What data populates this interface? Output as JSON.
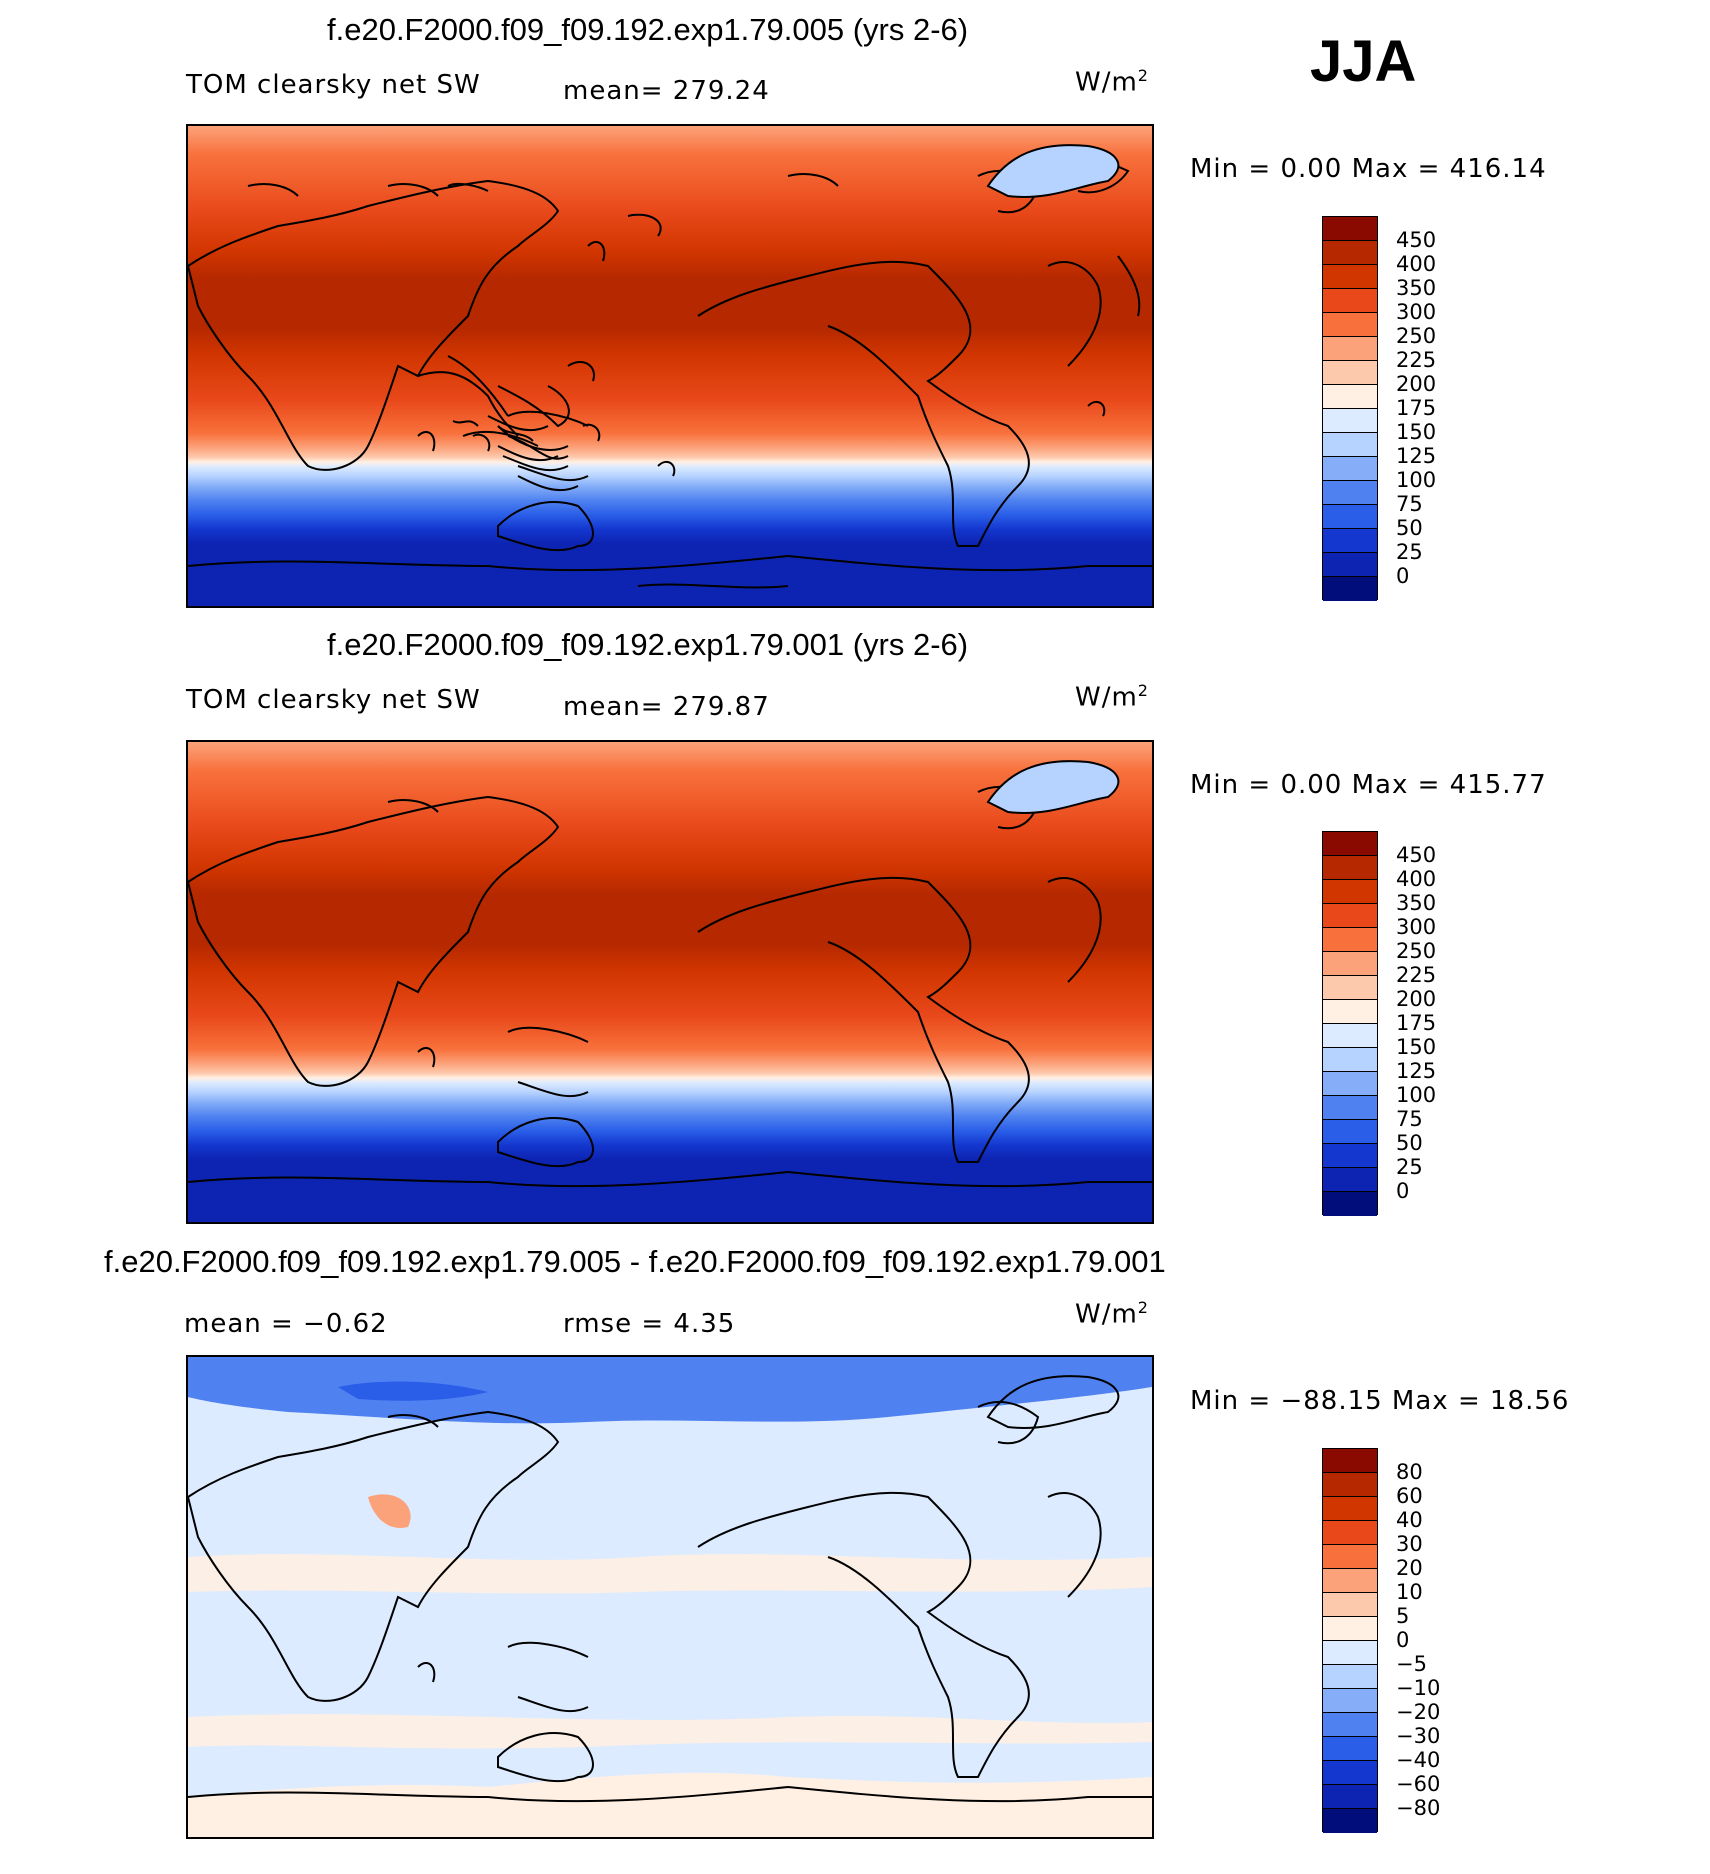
{
  "season": "JJA",
  "panels": [
    {
      "title": "f.e20.F2000.f09_f09.192.exp1.79.005 (yrs 2-6)",
      "variable": "TOM clearsky net SW",
      "stat1": "mean= 279.24",
      "stat2": "",
      "units_base": "W/m",
      "units_sup": "2",
      "minmax": "Min =     0.00 Max = 416.14",
      "levels": [
        "450",
        "400",
        "350",
        "300",
        "250",
        "225",
        "200",
        "175",
        "150",
        "125",
        "100",
        "75",
        "50",
        "25",
        "0"
      ],
      "colors": [
        "#8b0a00",
        "#b52800",
        "#d23600",
        "#e8481a",
        "#f8713c",
        "#fca27a",
        "#fdc9ad",
        "#fff0e3",
        "#dcebff",
        "#b6d2ff",
        "#86aef8",
        "#4f82f0",
        "#2a5ee8",
        "#1437cf",
        "#0d24b2",
        "#000d7a"
      ]
    },
    {
      "title": "f.e20.F2000.f09_f09.192.exp1.79.001 (yrs 2-6)",
      "variable": "TOM clearsky net SW",
      "stat1": "mean= 279.87",
      "stat2": "",
      "units_base": "W/m",
      "units_sup": "2",
      "minmax": "Min =     0.00 Max = 415.77",
      "levels": [
        "450",
        "400",
        "350",
        "300",
        "250",
        "225",
        "200",
        "175",
        "150",
        "125",
        "100",
        "75",
        "50",
        "25",
        "0"
      ],
      "colors": [
        "#8b0a00",
        "#b52800",
        "#d23600",
        "#e8481a",
        "#f8713c",
        "#fca27a",
        "#fdc9ad",
        "#fff0e3",
        "#dcebff",
        "#b6d2ff",
        "#86aef8",
        "#4f82f0",
        "#2a5ee8",
        "#1437cf",
        "#0d24b2",
        "#000d7a"
      ]
    },
    {
      "title": "f.e20.F2000.f09_f09.192.exp1.79.005 - f.e20.F2000.f09_f09.192.exp1.79.001",
      "variable": "mean =   −0.62",
      "stat1": "rmse =     4.35",
      "stat2": "",
      "units_base": "W/m",
      "units_sup": "2",
      "minmax": "Min = −88.15 Max =   18.56",
      "levels": [
        "80",
        "60",
        "40",
        "30",
        "20",
        "10",
        "5",
        "0",
        "−5",
        "−10",
        "−20",
        "−30",
        "−40",
        "−60",
        "−80"
      ],
      "colors": [
        "#8b0a00",
        "#b52800",
        "#d23600",
        "#e8481a",
        "#f8713c",
        "#fca27a",
        "#fdc9ad",
        "#fff0e3",
        "#dcebff",
        "#b6d2ff",
        "#86aef8",
        "#4f82f0",
        "#2a5ee8",
        "#1437cf",
        "#0d24b2",
        "#000d7a"
      ]
    }
  ]
}
